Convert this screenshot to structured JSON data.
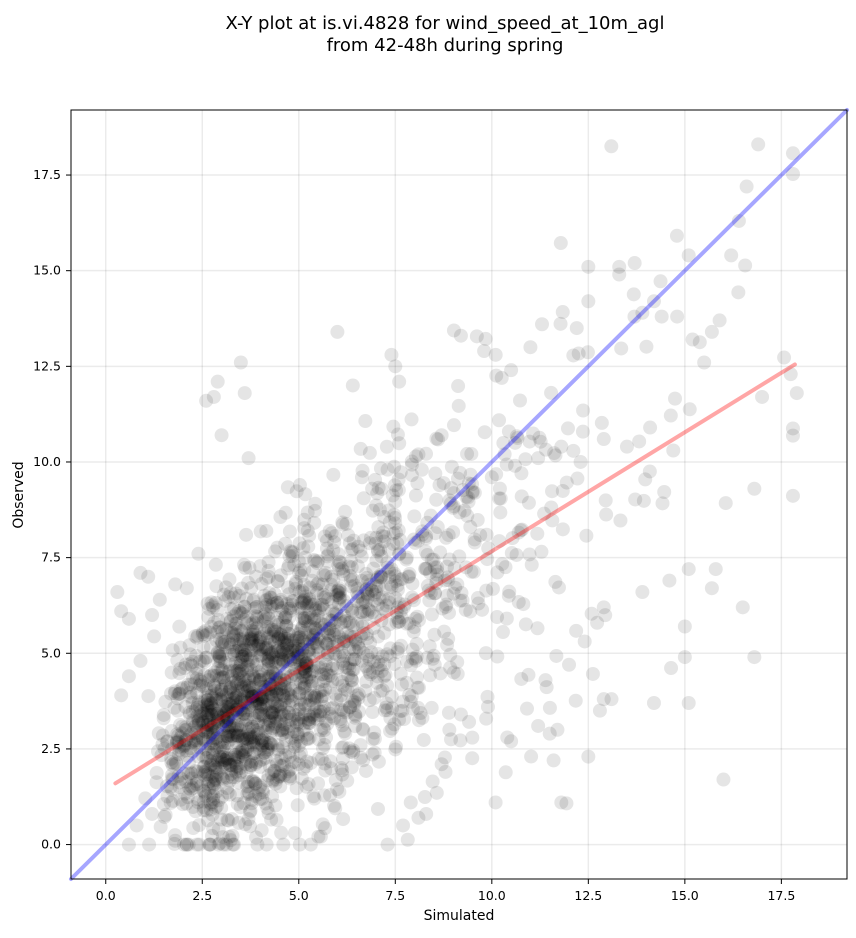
{
  "chart_data": {
    "type": "scatter",
    "title": [
      "X-Y plot at is.vi.4828 for wind_speed_at_10m_agl",
      "from 42-48h during spring"
    ],
    "xlabel": "Simulated",
    "ylabel": "Observed",
    "xlim": [
      -0.9,
      19.2
    ],
    "ylim": [
      -0.9,
      19.2
    ],
    "x_ticks": [
      0.0,
      2.5,
      5.0,
      7.5,
      10.0,
      12.5,
      15.0,
      17.5
    ],
    "x_tick_labels": [
      "0.0",
      "2.5",
      "5.0",
      "7.5",
      "10.0",
      "12.5",
      "15.0",
      "17.5"
    ],
    "y_ticks": [
      0.0,
      2.5,
      5.0,
      7.5,
      10.0,
      12.5,
      15.0,
      17.5
    ],
    "y_tick_labels": [
      "0.0",
      "2.5",
      "5.0",
      "7.5",
      "10.0",
      "12.5",
      "15.0",
      "17.5"
    ],
    "grid": true,
    "series": [
      {
        "kind": "scatter",
        "color": "#000000",
        "alpha": 0.1,
        "approx_count": 2200,
        "points_note": "dense cloud centered near (4.5, 4.5), spreading to about (17, 18)",
        "sample_points": [
          [
            0.3,
            6.6
          ],
          [
            0.4,
            6.1
          ],
          [
            0.6,
            5.9
          ],
          [
            0.9,
            7.1
          ],
          [
            1.1,
            7.0
          ],
          [
            1.2,
            6.0
          ],
          [
            1.4,
            6.4
          ],
          [
            1.8,
            6.8
          ],
          [
            2.1,
            6.7
          ],
          [
            2.4,
            7.6
          ],
          [
            2.6,
            11.6
          ],
          [
            2.8,
            11.7
          ],
          [
            2.9,
            12.1
          ],
          [
            3.0,
            10.7
          ],
          [
            3.5,
            12.6
          ],
          [
            3.6,
            11.8
          ],
          [
            3.7,
            10.1
          ],
          [
            6.0,
            13.4
          ],
          [
            6.4,
            12.0
          ],
          [
            7.4,
            12.8
          ],
          [
            7.5,
            12.5
          ],
          [
            7.6,
            12.1
          ],
          [
            9.2,
            13.3
          ],
          [
            9.8,
            12.9
          ],
          [
            10.1,
            12.8
          ],
          [
            10.5,
            12.4
          ],
          [
            11.0,
            13.0
          ],
          [
            11.3,
            13.6
          ],
          [
            12.2,
            13.5
          ],
          [
            12.5,
            14.2
          ],
          [
            12.5,
            15.1
          ],
          [
            13.3,
            14.9
          ],
          [
            13.3,
            15.1
          ],
          [
            13.7,
            15.2
          ],
          [
            13.9,
            13.9
          ],
          [
            14.2,
            14.2
          ],
          [
            14.4,
            13.8
          ],
          [
            14.8,
            13.8
          ],
          [
            15.1,
            15.4
          ],
          [
            15.2,
            13.2
          ],
          [
            15.5,
            12.6
          ],
          [
            15.7,
            13.4
          ],
          [
            15.9,
            13.7
          ],
          [
            16.2,
            15.4
          ],
          [
            16.4,
            16.3
          ],
          [
            16.6,
            17.2
          ],
          [
            16.9,
            18.3
          ],
          [
            17.0,
            11.7
          ],
          [
            17.9,
            11.8
          ],
          [
            16.8,
            9.3
          ],
          [
            16.5,
            6.2
          ],
          [
            16.8,
            4.9
          ],
          [
            16.0,
            1.7
          ],
          [
            15.8,
            7.2
          ],
          [
            15.7,
            6.7
          ],
          [
            15.1,
            7.2
          ],
          [
            15.1,
            3.7
          ],
          [
            15.0,
            4.9
          ],
          [
            15.0,
            5.7
          ],
          [
            14.6,
            6.9
          ],
          [
            14.2,
            3.7
          ],
          [
            13.9,
            6.6
          ],
          [
            12.9,
            6.2
          ],
          [
            12.9,
            3.8
          ],
          [
            13.1,
            3.8
          ],
          [
            12.8,
            3.5
          ],
          [
            12.5,
            2.3
          ],
          [
            12.0,
            4.7
          ],
          [
            11.7,
            3.0
          ],
          [
            11.5,
            2.9
          ],
          [
            11.6,
            2.2
          ],
          [
            11.2,
            3.1
          ],
          [
            11.8,
            1.1
          ],
          [
            10.5,
            2.7
          ],
          [
            10.4,
            2.8
          ],
          [
            9.9,
            3.6
          ],
          [
            9.2,
            3.4
          ],
          [
            8.9,
            3.0
          ],
          [
            8.7,
            2.1
          ],
          [
            8.8,
            1.9
          ],
          [
            8.3,
            0.8
          ],
          [
            8.1,
            0.7
          ],
          [
            7.9,
            1.1
          ],
          [
            7.7,
            0.5
          ],
          [
            7.3,
            0.0
          ],
          [
            4.6,
            0.0
          ],
          [
            4.9,
            0.3
          ],
          [
            3.2,
            0.2
          ],
          [
            2.1,
            0.0
          ],
          [
            1.8,
            0.1
          ],
          [
            0.6,
            0.0
          ],
          [
            0.8,
            0.5
          ],
          [
            1.2,
            0.8
          ],
          [
            0.4,
            3.9
          ],
          [
            0.6,
            4.4
          ],
          [
            0.9,
            4.8
          ],
          [
            1.5,
            3.3
          ],
          [
            2.0,
            4.1
          ],
          [
            2.5,
            3.2
          ],
          [
            3.0,
            4.0
          ],
          [
            3.3,
            3.7
          ],
          [
            3.6,
            3.5
          ],
          [
            3.8,
            4.1
          ],
          [
            4.0,
            4.3
          ],
          [
            4.2,
            4.6
          ],
          [
            4.4,
            4.0
          ],
          [
            4.6,
            4.8
          ],
          [
            4.8,
            4.4
          ],
          [
            5.0,
            5.0
          ],
          [
            5.2,
            4.3
          ],
          [
            5.4,
            3.9
          ],
          [
            5.7,
            4.7
          ],
          [
            6.0,
            5.3
          ],
          [
            6.3,
            5.8
          ],
          [
            6.7,
            6.1
          ],
          [
            7.0,
            6.6
          ],
          [
            7.4,
            7.2
          ],
          [
            7.8,
            7.5
          ],
          [
            8.2,
            8.1
          ],
          [
            8.6,
            8.3
          ],
          [
            9.0,
            8.8
          ],
          [
            9.5,
            9.2
          ],
          [
            10.0,
            9.6
          ],
          [
            10.6,
            9.9
          ],
          [
            11.2,
            10.1
          ],
          [
            11.8,
            10.4
          ],
          [
            12.3,
            10.0
          ],
          [
            12.9,
            10.6
          ],
          [
            13.5,
            10.4
          ],
          [
            14.1,
            10.9
          ],
          [
            14.7,
            10.3
          ],
          [
            3.1,
            2.2
          ],
          [
            3.5,
            1.9
          ],
          [
            4.1,
            2.4
          ],
          [
            4.5,
            1.8
          ],
          [
            5.0,
            2.1
          ],
          [
            5.5,
            1.6
          ],
          [
            6.1,
            2.0
          ],
          [
            6.6,
            2.6
          ],
          [
            5.8,
            8.2
          ],
          [
            6.2,
            8.7
          ],
          [
            6.9,
            9.3
          ],
          [
            7.3,
            9.8
          ],
          [
            8.1,
            10.2
          ],
          [
            8.7,
            10.7
          ]
        ]
      },
      {
        "kind": "line",
        "color": "#0000ff",
        "alpha": 0.35,
        "x": [
          -0.9,
          19.2
        ],
        "y": [
          -0.9,
          19.2
        ]
      },
      {
        "kind": "line",
        "color": "#ff0000",
        "alpha": 0.35,
        "x": [
          0.25,
          17.85
        ],
        "y": [
          1.6,
          12.55
        ]
      }
    ]
  }
}
